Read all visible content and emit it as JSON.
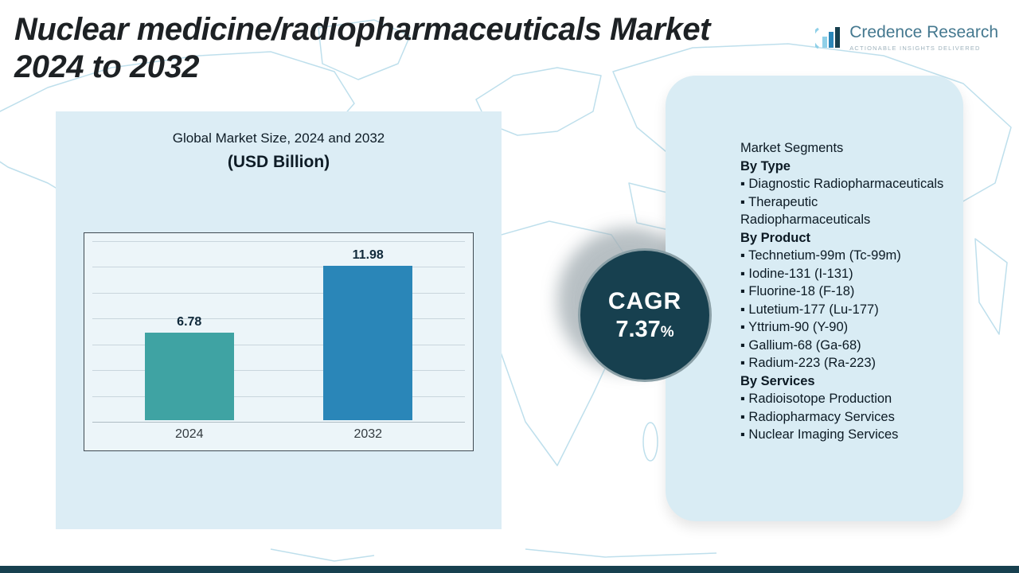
{
  "header": {
    "title_line1": "Nuclear medicine/radiopharmaceuticals Market",
    "title_line2": "2024 to 2032",
    "logo_name": "Credence Research",
    "logo_tagline": "Actionable Insights Delivered"
  },
  "chart": {
    "title": "Global Market Size, 2024 and 2032",
    "subtitle": "(USD Billion)"
  },
  "chart_data": {
    "type": "bar",
    "title": "Global Market Size, 2024 and 2032",
    "subtitle": "(USD Billion)",
    "unit": "USD Billion",
    "categories": [
      "2024",
      "2032"
    ],
    "values": [
      6.78,
      11.98
    ],
    "value_labels": [
      "6.78",
      "11.98"
    ],
    "ylim": [
      0,
      14
    ],
    "grid": true,
    "legend": false,
    "bar_colors": [
      "#3fa3a3",
      "#2a86b8"
    ]
  },
  "cagr": {
    "label": "CAGR",
    "value": "7.37",
    "percent_sign": "%"
  },
  "segments": {
    "heading": "Market Segments",
    "bullet": "▪",
    "groups": [
      {
        "label": "By Type",
        "items": [
          "Diagnostic Radiopharmaceuticals",
          "Therapeutic Radiopharmaceuticals"
        ]
      },
      {
        "label": "By Product",
        "items": [
          "Technetium-99m (Tc-99m)",
          "Iodine-131 (I-131)",
          "Fluorine-18 (F-18)",
          "Lutetium-177 (Lu-177)",
          "Yttrium-90 (Y-90)",
          "Gallium-68 (Ga-68)",
          "Radium-223 (Ra-223)"
        ]
      },
      {
        "label": "By Services",
        "items": [
          "Radioisotope Production",
          "Radiopharmacy Services",
          "Nuclear Imaging Services"
        ]
      }
    ]
  },
  "colors": {
    "accent_dark": "#17404f",
    "panel_blue": "#dcedf5",
    "segments_panel_blue": "#d9ecf4",
    "map_line": "#b7dcea",
    "bar_2024": "#3fa3a3",
    "bar_2032": "#2a86b8",
    "logo_blue": "#44788f"
  }
}
